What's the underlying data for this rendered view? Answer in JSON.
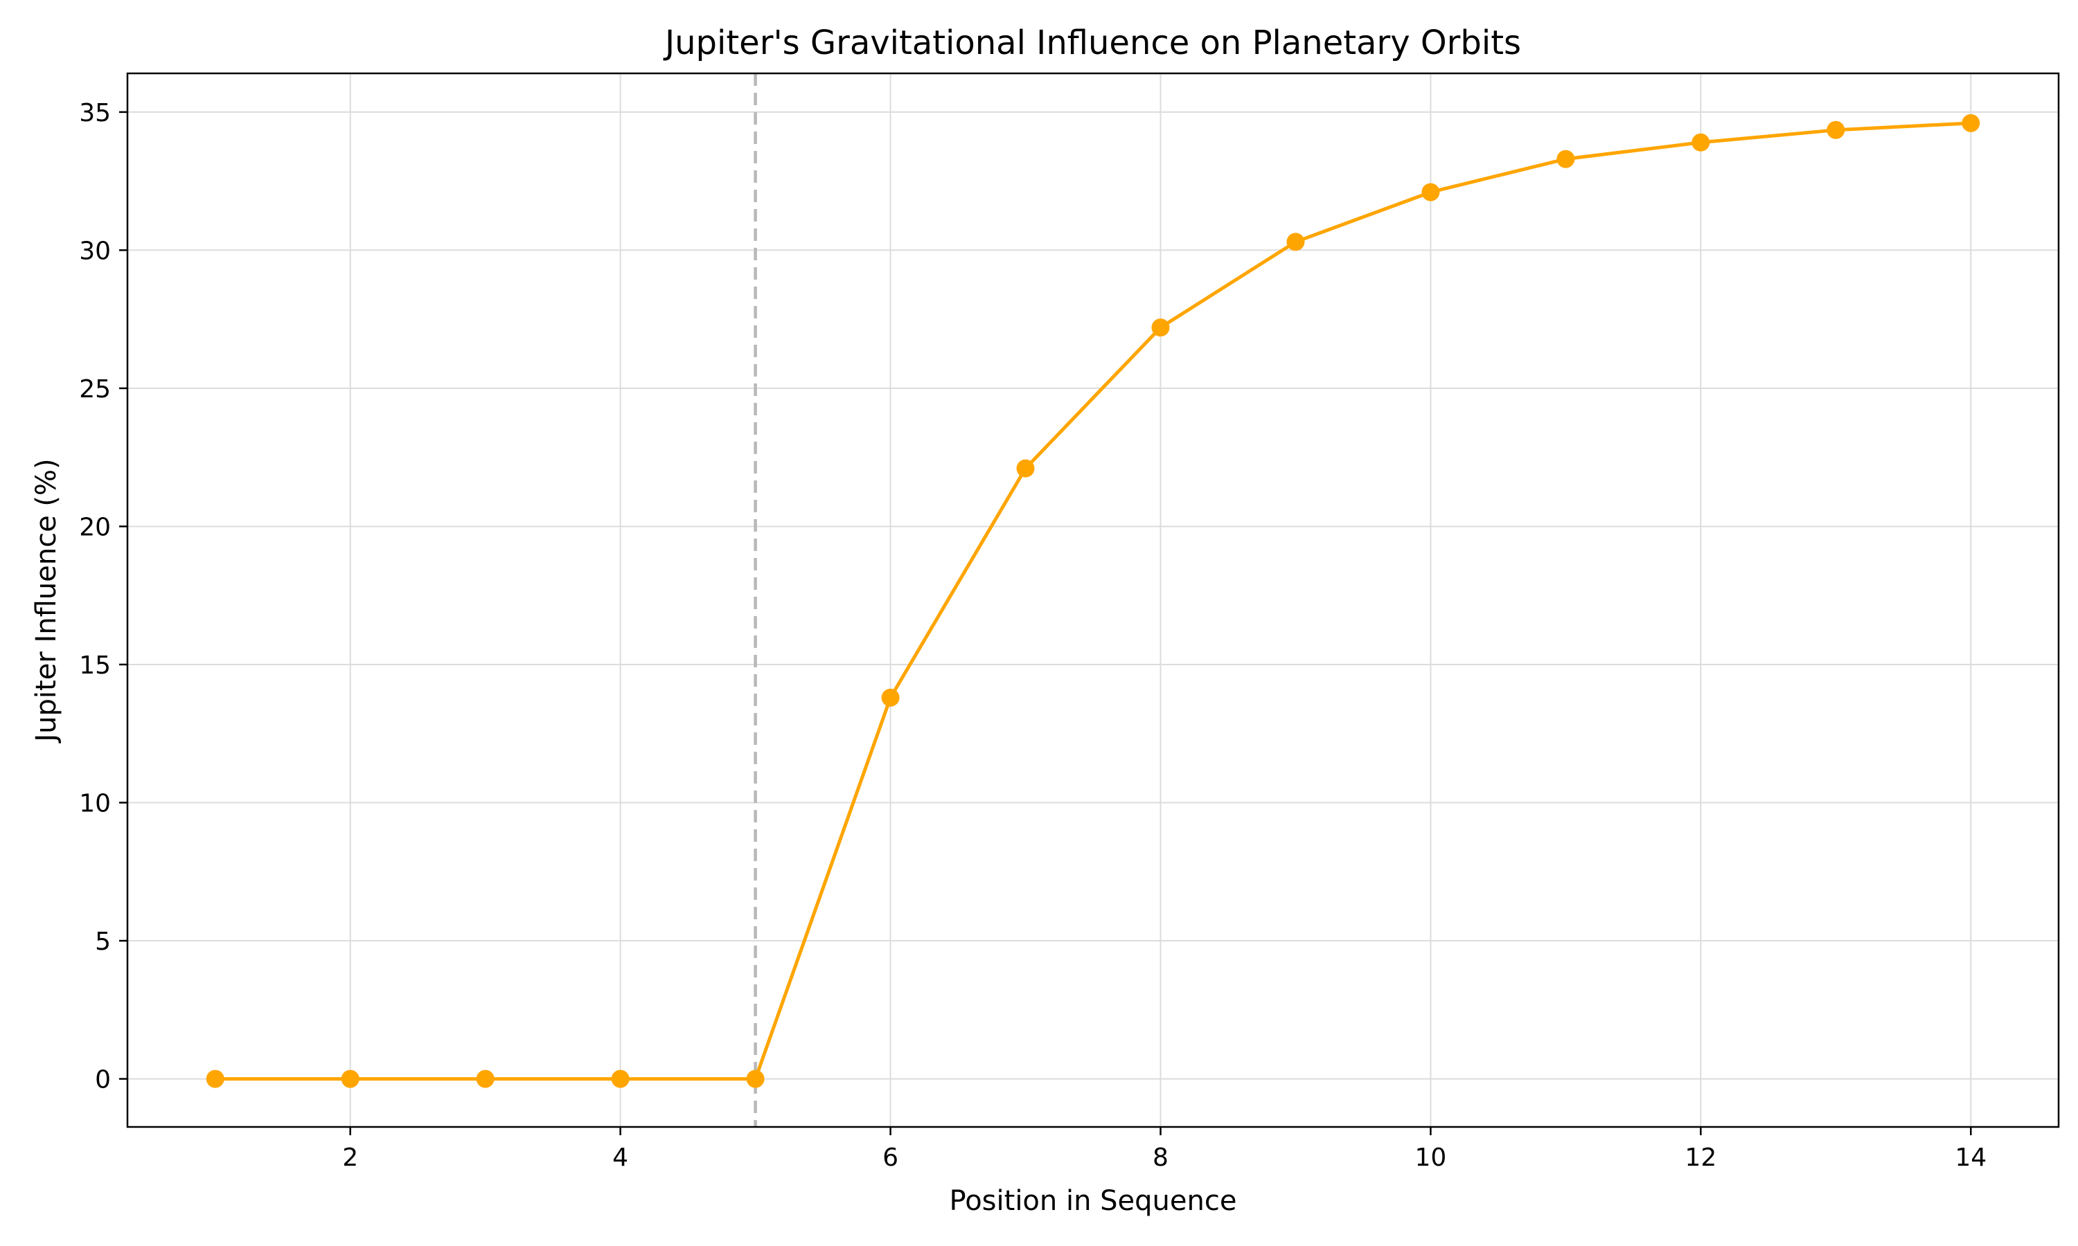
{
  "chart_data": {
    "type": "line",
    "title": "Jupiter's Gravitational Influence on Planetary Orbits",
    "xlabel": "Position in Sequence",
    "ylabel": "Jupiter Influence (%)",
    "xlim": [
      0.35,
      14.65
    ],
    "ylim": [
      -1.74,
      36.4
    ],
    "x_ticks": [
      2,
      4,
      6,
      8,
      10,
      12,
      14
    ],
    "y_ticks": [
      0,
      5,
      10,
      15,
      20,
      25,
      30,
      35
    ],
    "grid": true,
    "reference_line": {
      "orientation": "vertical",
      "x": 5,
      "style": "dashed",
      "color": "#b8b8b8"
    },
    "series": [
      {
        "color": "#ffa500",
        "marker": "circle",
        "x": [
          1,
          2,
          3,
          4,
          5,
          6,
          7,
          8,
          9,
          10,
          11,
          12,
          13,
          14
        ],
        "y": [
          0,
          0,
          0,
          0,
          0,
          13.8,
          22.1,
          27.2,
          30.3,
          32.1,
          33.3,
          33.9,
          34.35,
          34.6
        ]
      }
    ]
  }
}
